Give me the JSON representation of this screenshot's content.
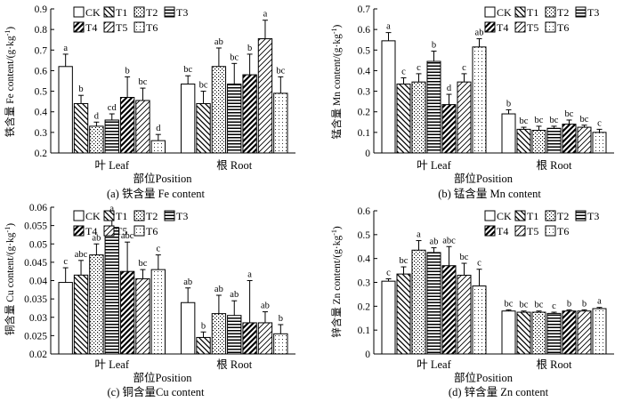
{
  "figure": {
    "treatments": [
      "CK",
      "T1",
      "T2",
      "T3",
      "T4",
      "T5",
      "T6"
    ],
    "legend": [
      [
        "CK",
        "T1",
        "T2",
        "T3"
      ],
      [
        "T4",
        "T5",
        "T6"
      ]
    ],
    "unit_suffix": "/(g·kg",
    "unit_exp": "-1",
    "xlabel": "部位Position"
  },
  "chart_data": [
    {
      "id": "a",
      "type": "bar",
      "title": "(a) 铁含量 Fe content",
      "ylabel": "铁含量 Fe content",
      "ylim": [
        0.2,
        0.9
      ],
      "yticks": [
        "0.2",
        "0.3",
        "0.4",
        "0.5",
        "0.6",
        "0.7",
        "0.8",
        "0.9"
      ],
      "categories": [
        "叶 Leaf",
        "根 Root"
      ],
      "series": [
        {
          "name": "CK",
          "values": [
            0.62,
            0.535
          ],
          "errors": [
            0.06,
            0.04
          ],
          "letters": [
            "a",
            "bc"
          ]
        },
        {
          "name": "T1",
          "values": [
            0.44,
            0.44
          ],
          "errors": [
            0.04,
            0.06
          ],
          "letters": [
            "b",
            "bc"
          ]
        },
        {
          "name": "T2",
          "values": [
            0.33,
            0.62
          ],
          "errors": [
            0.02,
            0.09
          ],
          "letters": [
            "d",
            "ab"
          ]
        },
        {
          "name": "T3",
          "values": [
            0.36,
            0.535
          ],
          "errors": [
            0.03,
            0.1
          ],
          "letters": [
            "cd",
            "bc"
          ]
        },
        {
          "name": "T4",
          "values": [
            0.47,
            0.58
          ],
          "errors": [
            0.1,
            0.1
          ],
          "letters": [
            "b",
            "b"
          ]
        },
        {
          "name": "T5",
          "values": [
            0.455,
            0.755
          ],
          "errors": [
            0.06,
            0.09
          ],
          "letters": [
            "bc",
            "a"
          ]
        },
        {
          "name": "T6",
          "values": [
            0.26,
            0.49
          ],
          "errors": [
            0.03,
            0.08
          ],
          "letters": [
            "d",
            "bc"
          ]
        }
      ]
    },
    {
      "id": "b",
      "type": "bar",
      "title": "(b) 锰含量 Mn content",
      "ylabel": "锰含量 Mn content",
      "ylim": [
        0,
        0.7
      ],
      "yticks": [
        "0",
        "0.1",
        "0.2",
        "0.3",
        "0.4",
        "0.5",
        "0.6",
        "0.7"
      ],
      "categories": [
        "叶 Leaf",
        "根 Root"
      ],
      "series": [
        {
          "name": "CK",
          "values": [
            0.545,
            0.19
          ],
          "errors": [
            0.04,
            0.02
          ],
          "letters": [
            "a",
            "b"
          ]
        },
        {
          "name": "T1",
          "values": [
            0.335,
            0.115
          ],
          "errors": [
            0.03,
            0.01
          ],
          "letters": [
            "c",
            "bc"
          ]
        },
        {
          "name": "T2",
          "values": [
            0.345,
            0.11
          ],
          "errors": [
            0.04,
            0.02
          ],
          "letters": [
            "c",
            "bc"
          ]
        },
        {
          "name": "T3",
          "values": [
            0.445,
            0.12
          ],
          "errors": [
            0.05,
            0.01
          ],
          "letters": [
            "b",
            "bc"
          ]
        },
        {
          "name": "T4",
          "values": [
            0.235,
            0.14
          ],
          "errors": [
            0.05,
            0.02
          ],
          "letters": [
            "d",
            "bc"
          ]
        },
        {
          "name": "T5",
          "values": [
            0.345,
            0.125
          ],
          "errors": [
            0.04,
            0.01
          ],
          "letters": [
            "c",
            "bc"
          ]
        },
        {
          "name": "T6",
          "values": [
            0.515,
            0.1
          ],
          "errors": [
            0.04,
            0.015
          ],
          "letters": [
            "ab",
            "c"
          ]
        }
      ]
    },
    {
      "id": "c",
      "type": "bar",
      "title": "(c) 铜含量Cu content",
      "ylabel": "铜含量 Cu content",
      "ylim": [
        0.02,
        0.06
      ],
      "yticks": [
        "0.02",
        "0.025",
        "0.03",
        "0.035",
        "0.04",
        "0.045",
        "0.05",
        "0.055",
        "0.06"
      ],
      "categories": [
        "叶 Leaf",
        "根 Root"
      ],
      "series": [
        {
          "name": "CK",
          "values": [
            0.0395,
            0.034
          ],
          "errors": [
            0.004,
            0.004
          ],
          "letters": [
            "c",
            "ab"
          ]
        },
        {
          "name": "T1",
          "values": [
            0.0415,
            0.0245
          ],
          "errors": [
            0.004,
            0.0015
          ],
          "letters": [
            "abc",
            "b"
          ]
        },
        {
          "name": "T2",
          "values": [
            0.047,
            0.031
          ],
          "errors": [
            0.003,
            0.005
          ],
          "letters": [
            "ab",
            "ab"
          ]
        },
        {
          "name": "T3",
          "values": [
            0.0545,
            0.0305
          ],
          "errors": [
            0.0035,
            0.004
          ],
          "letters": [
            "a",
            "ab"
          ]
        },
        {
          "name": "T4",
          "values": [
            0.0425,
            0.0285
          ],
          "errors": [
            0.008,
            0.0115
          ],
          "letters": [
            "abc",
            "a"
          ]
        },
        {
          "name": "T5",
          "values": [
            0.0405,
            0.0285
          ],
          "errors": [
            0.0025,
            0.003
          ],
          "letters": [
            "bc",
            "ab"
          ]
        },
        {
          "name": "T6",
          "values": [
            0.043,
            0.0255
          ],
          "errors": [
            0.004,
            0.0025
          ],
          "letters": [
            "c",
            "b"
          ]
        }
      ]
    },
    {
      "id": "d",
      "type": "bar",
      "title": "(d) 锌含量 Zn content",
      "ylabel": "锌含量 Zn content",
      "ylim": [
        0,
        0.6
      ],
      "yticks": [
        "0",
        "0.1",
        "0.2",
        "0.3",
        "0.4",
        "0.5",
        "0.6"
      ],
      "categories": [
        "叶 Leaf",
        "根 Root"
      ],
      "series": [
        {
          "name": "CK",
          "values": [
            0.305,
            0.18
          ],
          "errors": [
            0.01,
            0.005
          ],
          "letters": [
            "c",
            "bc"
          ]
        },
        {
          "name": "T1",
          "values": [
            0.335,
            0.175
          ],
          "errors": [
            0.03,
            0.005
          ],
          "letters": [
            "bc",
            "bc"
          ]
        },
        {
          "name": "T2",
          "values": [
            0.435,
            0.175
          ],
          "errors": [
            0.04,
            0.005
          ],
          "letters": [
            "a",
            "bc"
          ]
        },
        {
          "name": "T3",
          "values": [
            0.425,
            0.17
          ],
          "errors": [
            0.02,
            0.005
          ],
          "letters": [
            "ab",
            "c"
          ]
        },
        {
          "name": "T4",
          "values": [
            0.37,
            0.18
          ],
          "errors": [
            0.08,
            0.005
          ],
          "letters": [
            "abc",
            "b"
          ]
        },
        {
          "name": "T5",
          "values": [
            0.33,
            0.18
          ],
          "errors": [
            0.05,
            0.005
          ],
          "letters": [
            "bc",
            "b"
          ]
        },
        {
          "name": "T6",
          "values": [
            0.285,
            0.19
          ],
          "errors": [
            0.07,
            0.005
          ],
          "letters": [
            "c",
            "a"
          ]
        }
      ]
    }
  ]
}
